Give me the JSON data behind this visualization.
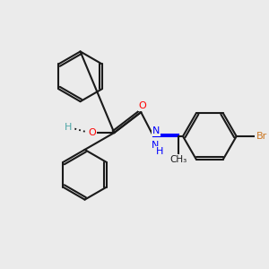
{
  "bg_color": "#ebebeb",
  "bond_color": "#1a1a1a",
  "bond_width": 1.5,
  "atom_colors": {
    "O": "#ff0000",
    "N": "#0000ff",
    "Br": "#cc7722",
    "H": "#4da6a6",
    "C": "#1a1a1a"
  },
  "font_size": 7.5
}
